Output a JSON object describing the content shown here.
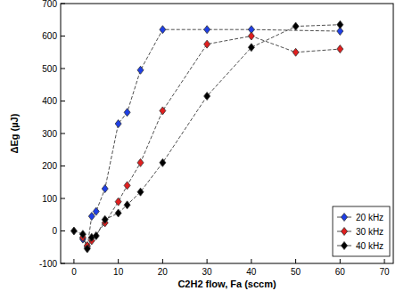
{
  "chart_data": {
    "type": "line",
    "x_label": "C2H2 flow, Fa (sccm)",
    "y_label": "ΔEg (µJ)",
    "xlim": [
      -3,
      72
    ],
    "xticks": [
      0,
      10,
      20,
      30,
      40,
      50,
      60,
      70
    ],
    "ylim": [
      -100,
      700
    ],
    "yticks": [
      -100,
      0,
      100,
      200,
      300,
      400,
      500,
      600,
      700
    ],
    "grid": false,
    "legend": "lower right",
    "marker": "diamond",
    "line_style": "dashed",
    "series": [
      {
        "name": "20 kHz",
        "color": "#1f3fe6",
        "x": [
          2,
          3,
          4,
          5,
          7,
          10,
          12,
          15,
          20,
          30,
          40,
          60
        ],
        "values": [
          -25,
          -50,
          45,
          60,
          130,
          330,
          365,
          495,
          620,
          620,
          620,
          615
        ]
      },
      {
        "name": "30 kHz",
        "color": "#e01f1f",
        "x": [
          2,
          3,
          4,
          7,
          10,
          12,
          15,
          20,
          30,
          40,
          50,
          60
        ],
        "values": [
          -20,
          -45,
          -30,
          25,
          90,
          140,
          210,
          370,
          575,
          600,
          550,
          560
        ]
      },
      {
        "name": "40 kHz",
        "color": "#000000",
        "x": [
          0,
          2,
          3,
          4,
          5,
          7,
          10,
          12,
          15,
          20,
          30,
          40,
          50,
          60
        ],
        "values": [
          0,
          -10,
          -55,
          -20,
          -15,
          35,
          55,
          80,
          120,
          210,
          415,
          565,
          630,
          635
        ]
      }
    ]
  }
}
